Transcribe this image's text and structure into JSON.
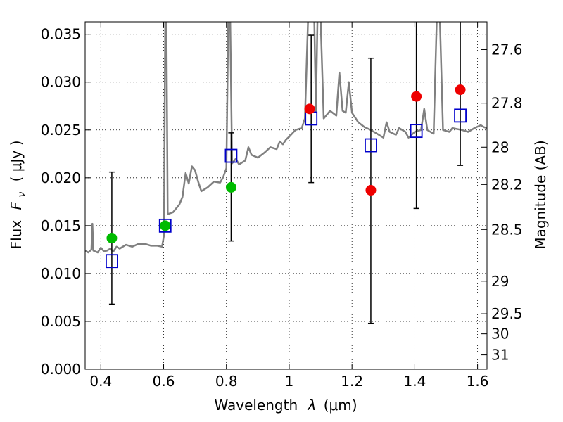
{
  "chart_data": {
    "type": "scatter",
    "xlabel": "Wavelength",
    "xlabel_symbol": "λ",
    "xlabel_unit": "(μm)",
    "ylabel": "Flux",
    "ylabel_symbol": "F",
    "ylabel_symbol_sub": "ν",
    "ylabel_unit": "( μJy )",
    "ylabel_right": "Magnitude (AB)",
    "xlim": [
      0.35,
      1.63
    ],
    "ylim": [
      0.0,
      0.0363
    ],
    "grid": true,
    "x_ticks": [
      0.4,
      0.6,
      0.8,
      1.0,
      1.2,
      1.4,
      1.6
    ],
    "x_tick_labels": [
      "0.4",
      "0.6",
      "0.8",
      "1",
      "1.2",
      "1.4",
      "1.6"
    ],
    "y_ticks": [
      0.0,
      0.005,
      0.01,
      0.015,
      0.02,
      0.025,
      0.03,
      0.035
    ],
    "y_tick_labels": [
      "0.000",
      "0.005",
      "0.010",
      "0.015",
      "0.020",
      "0.025",
      "0.030",
      "0.035"
    ],
    "right_ticks": [
      {
        "label": "27.6",
        "flux": 0.0334
      },
      {
        "label": "27.8",
        "flux": 0.0278
      },
      {
        "label": "28",
        "flux": 0.0232
      },
      {
        "label": "28.2",
        "flux": 0.0193
      },
      {
        "label": "28.5",
        "flux": 0.0146
      },
      {
        "label": "29",
        "flux": 0.0092
      },
      {
        "label": "29.5",
        "flux": 0.0058
      },
      {
        "label": "30",
        "flux": 0.0037
      },
      {
        "label": "31",
        "flux": 0.0015
      }
    ],
    "series": [
      {
        "kind": "model_spectrum",
        "color": "#808080",
        "points": [
          [
            0.35,
            0.0124
          ],
          [
            0.36,
            0.0122
          ],
          [
            0.37,
            0.0125
          ],
          [
            0.373,
            0.0152
          ],
          [
            0.376,
            0.0124
          ],
          [
            0.39,
            0.0122
          ],
          [
            0.4,
            0.0127
          ],
          [
            0.41,
            0.0123
          ],
          [
            0.42,
            0.0124
          ],
          [
            0.43,
            0.0126
          ],
          [
            0.44,
            0.0123
          ],
          [
            0.45,
            0.0128
          ],
          [
            0.46,
            0.0126
          ],
          [
            0.48,
            0.013
          ],
          [
            0.5,
            0.0128
          ],
          [
            0.52,
            0.0131
          ],
          [
            0.54,
            0.0131
          ],
          [
            0.56,
            0.0129
          ],
          [
            0.58,
            0.0129
          ],
          [
            0.595,
            0.0128
          ],
          [
            0.601,
            0.014
          ],
          [
            0.605,
            0.0365
          ],
          [
            0.609,
            0.0365
          ],
          [
            0.613,
            0.0162
          ],
          [
            0.63,
            0.0164
          ],
          [
            0.65,
            0.0172
          ],
          [
            0.66,
            0.018
          ],
          [
            0.67,
            0.0205
          ],
          [
            0.68,
            0.0194
          ],
          [
            0.69,
            0.0212
          ],
          [
            0.7,
            0.0208
          ],
          [
            0.71,
            0.0196
          ],
          [
            0.72,
            0.0186
          ],
          [
            0.74,
            0.019
          ],
          [
            0.76,
            0.0196
          ],
          [
            0.78,
            0.0195
          ],
          [
            0.79,
            0.0201
          ],
          [
            0.8,
            0.021
          ],
          [
            0.806,
            0.0365
          ],
          [
            0.812,
            0.0365
          ],
          [
            0.818,
            0.0215
          ],
          [
            0.83,
            0.022
          ],
          [
            0.84,
            0.0214
          ],
          [
            0.86,
            0.0218
          ],
          [
            0.87,
            0.0232
          ],
          [
            0.88,
            0.0224
          ],
          [
            0.9,
            0.0221
          ],
          [
            0.92,
            0.0226
          ],
          [
            0.94,
            0.0232
          ],
          [
            0.96,
            0.023
          ],
          [
            0.97,
            0.0238
          ],
          [
            0.98,
            0.0235
          ],
          [
            0.99,
            0.024
          ],
          [
            1.0,
            0.0243
          ],
          [
            1.02,
            0.025
          ],
          [
            1.04,
            0.0252
          ],
          [
            1.05,
            0.0262
          ],
          [
            1.06,
            0.0365
          ],
          [
            1.08,
            0.0365
          ],
          [
            1.085,
            0.027
          ],
          [
            1.09,
            0.0365
          ],
          [
            1.1,
            0.0365
          ],
          [
            1.11,
            0.0262
          ],
          [
            1.13,
            0.027
          ],
          [
            1.15,
            0.0265
          ],
          [
            1.16,
            0.031
          ],
          [
            1.17,
            0.027
          ],
          [
            1.18,
            0.0268
          ],
          [
            1.19,
            0.03
          ],
          [
            1.2,
            0.0268
          ],
          [
            1.22,
            0.0258
          ],
          [
            1.24,
            0.0253
          ],
          [
            1.26,
            0.025
          ],
          [
            1.28,
            0.0246
          ],
          [
            1.3,
            0.0242
          ],
          [
            1.31,
            0.0258
          ],
          [
            1.32,
            0.0248
          ],
          [
            1.34,
            0.0245
          ],
          [
            1.35,
            0.0252
          ],
          [
            1.37,
            0.0248
          ],
          [
            1.38,
            0.0242
          ],
          [
            1.4,
            0.0248
          ],
          [
            1.42,
            0.025
          ],
          [
            1.43,
            0.0272
          ],
          [
            1.44,
            0.025
          ],
          [
            1.46,
            0.0246
          ],
          [
            1.47,
            0.0365
          ],
          [
            1.48,
            0.0365
          ],
          [
            1.49,
            0.025
          ],
          [
            1.51,
            0.0248
          ],
          [
            1.52,
            0.0252
          ],
          [
            1.55,
            0.025
          ],
          [
            1.57,
            0.0248
          ],
          [
            1.59,
            0.0252
          ],
          [
            1.61,
            0.0255
          ],
          [
            1.62,
            0.0253
          ],
          [
            1.63,
            0.0252
          ]
        ]
      },
      {
        "kind": "observed_with_errors",
        "marker": "open_square",
        "color": "#0000cc",
        "errorbar_color": "#000000",
        "points": [
          {
            "x": 0.435,
            "y": 0.0113,
            "err_lo": 0.0068,
            "err_hi": 0.0206
          },
          {
            "x": 0.605,
            "y": 0.015,
            "err_lo": 0.015,
            "err_hi": 0.015
          },
          {
            "x": 0.815,
            "y": 0.0223,
            "err_lo": 0.0134,
            "err_hi": 0.0247
          },
          {
            "x": 1.07,
            "y": 0.0262,
            "err_lo": 0.0195,
            "err_hi": 0.0349
          },
          {
            "x": 1.26,
            "y": 0.0234,
            "err_lo": 0.0048,
            "err_hi": 0.0325
          },
          {
            "x": 1.405,
            "y": 0.0249,
            "err_lo": 0.0168,
            "err_hi": 0.0363
          },
          {
            "x": 1.545,
            "y": 0.0265,
            "err_lo": 0.0213,
            "err_hi": 0.0363
          }
        ]
      },
      {
        "kind": "model_band_green",
        "marker": "filled_circle",
        "color": "#00bb00",
        "points": [
          {
            "x": 0.435,
            "y": 0.0137
          },
          {
            "x": 0.605,
            "y": 0.015
          },
          {
            "x": 0.815,
            "y": 0.019
          }
        ]
      },
      {
        "kind": "model_band_red",
        "marker": "filled_circle",
        "color": "#ee0000",
        "points": [
          {
            "x": 1.065,
            "y": 0.0272
          },
          {
            "x": 1.26,
            "y": 0.0187
          },
          {
            "x": 1.405,
            "y": 0.0285
          },
          {
            "x": 1.545,
            "y": 0.0292
          }
        ]
      }
    ]
  }
}
